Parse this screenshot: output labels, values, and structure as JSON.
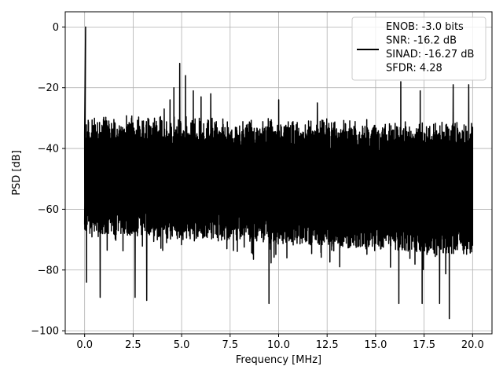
{
  "chart_data": {
    "type": "line",
    "title": "",
    "xlabel": "Frequency [MHz]",
    "ylabel": "PSD [dB]",
    "xlim": [
      -1.0,
      21.0
    ],
    "ylim": [
      -101.0,
      5.0
    ],
    "xticks": [
      0.0,
      2.5,
      5.0,
      7.5,
      10.0,
      12.5,
      15.0,
      17.5,
      20.0
    ],
    "xtick_labels": [
      "0.0",
      "2.5",
      "5.0",
      "7.5",
      "10.0",
      "12.5",
      "15.0",
      "17.5",
      "20.0"
    ],
    "yticks": [
      0,
      -20,
      -40,
      -60,
      -80,
      -100
    ],
    "ytick_labels": [
      "0",
      "−20",
      "−40",
      "−60",
      "−80",
      "−100"
    ],
    "grid": true,
    "legend_position": "upper-right",
    "series": [
      {
        "color": "#000000",
        "signal_peak": {
          "x": 0.05,
          "y": 0
        },
        "noise_floor_upper": [
          -29,
          -31
        ],
        "noise_floor_lower": [
          -68,
          -75
        ],
        "spurs": [
          {
            "x": 4.1,
            "y": -27
          },
          {
            "x": 4.4,
            "y": -24
          },
          {
            "x": 4.6,
            "y": -20
          },
          {
            "x": 4.9,
            "y": -12
          },
          {
            "x": 5.2,
            "y": -16
          },
          {
            "x": 5.6,
            "y": -21
          },
          {
            "x": 6.0,
            "y": -23
          },
          {
            "x": 6.5,
            "y": -22
          },
          {
            "x": 10.0,
            "y": -24
          },
          {
            "x": 12.0,
            "y": -25
          },
          {
            "x": 16.3,
            "y": -18
          },
          {
            "x": 17.3,
            "y": -21
          },
          {
            "x": 19.0,
            "y": -19
          },
          {
            "x": 19.8,
            "y": -19
          }
        ],
        "deep_dips": [
          {
            "x": 0.1,
            "y": -84
          },
          {
            "x": 0.8,
            "y": -89
          },
          {
            "x": 2.6,
            "y": -89
          },
          {
            "x": 3.2,
            "y": -90
          },
          {
            "x": 9.5,
            "y": -91
          },
          {
            "x": 16.2,
            "y": -91
          },
          {
            "x": 17.4,
            "y": -91
          },
          {
            "x": 18.3,
            "y": -91
          },
          {
            "x": 18.8,
            "y": -96
          }
        ]
      }
    ],
    "legend_lines": [
      "ENOB: -3.0 bits",
      "SNR: -16.2 dB",
      "SINAD: -16.27 dB",
      "SFDR: 4.28"
    ]
  }
}
